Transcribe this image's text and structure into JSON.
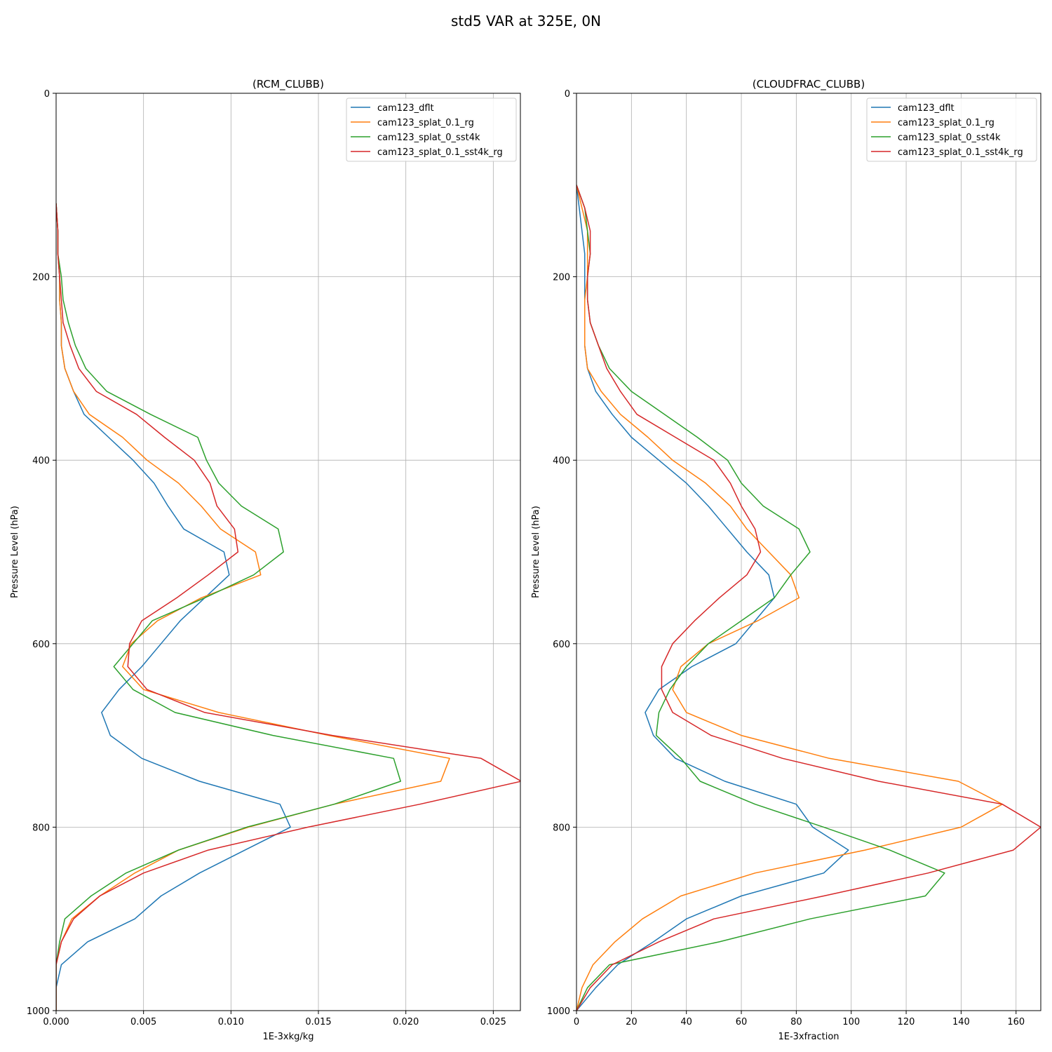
{
  "figure": {
    "title": "std5 VAR at 325E, 0N"
  },
  "colors": [
    "#1f77b4",
    "#ff7f0e",
    "#2ca02c",
    "#d62728"
  ],
  "chart_data": [
    {
      "type": "line",
      "title": "(RCM_CLUBB)",
      "xlabel": "1E-3xkg/kg",
      "ylabel": "Pressure Level (hPa)",
      "xlim": [
        0,
        0.02655
      ],
      "ylim": [
        1000,
        0
      ],
      "y_inverted": true,
      "grid": true,
      "legend": "top-right",
      "xticks": [
        0,
        0.005,
        0.01,
        0.015,
        0.02,
        0.025
      ],
      "xtick_labels": [
        "0.000",
        "0.005",
        "0.010",
        "0.015",
        "0.020",
        "0.025"
      ],
      "yticks": [
        0,
        200,
        400,
        600,
        800,
        1000
      ],
      "ytick_labels": [
        "0",
        "200",
        "400",
        "600",
        "800",
        "1000"
      ],
      "y": [
        120,
        150,
        175,
        200,
        225,
        250,
        275,
        300,
        325,
        350,
        375,
        400,
        425,
        450,
        475,
        500,
        525,
        550,
        575,
        600,
        625,
        650,
        675,
        700,
        725,
        750,
        775,
        800,
        825,
        850,
        875,
        900,
        925,
        950,
        975,
        1000
      ],
      "series": [
        {
          "name": "cam123_dflt",
          "values": [
            0,
            0.0001,
            0.0001,
            0.0002,
            0.0002,
            0.0003,
            0.0003,
            0.0005,
            0.001,
            0.0016,
            0.003,
            0.0044,
            0.0056,
            0.0064,
            0.0073,
            0.0096,
            0.0099,
            0.0085,
            0.0071,
            0.006,
            0.0049,
            0.0036,
            0.0026,
            0.0031,
            0.0049,
            0.0082,
            0.0128,
            0.0134,
            0.0108,
            0.0082,
            0.006,
            0.0045,
            0.0018,
            0.0003,
            0,
            0
          ]
        },
        {
          "name": "cam123_splat_0.1_rg",
          "values": [
            0,
            0.0001,
            0.0001,
            0.0002,
            0.0002,
            0.0003,
            0.0003,
            0.0005,
            0.001,
            0.0019,
            0.0038,
            0.0052,
            0.007,
            0.0083,
            0.0094,
            0.0114,
            0.0117,
            0.0083,
            0.0058,
            0.0043,
            0.0038,
            0.005,
            0.0093,
            0.0156,
            0.0225,
            0.022,
            0.0159,
            0.011,
            0.007,
            0.0045,
            0.0025,
            0.0009,
            0.0003,
            0,
            0,
            0
          ]
        },
        {
          "name": "cam123_splat_0_sst4k",
          "values": [
            0,
            0.0001,
            0.0001,
            0.0003,
            0.0004,
            0.0007,
            0.0011,
            0.0017,
            0.0029,
            0.0054,
            0.0081,
            0.0086,
            0.0093,
            0.0106,
            0.0127,
            0.013,
            0.0113,
            0.0085,
            0.0055,
            0.0044,
            0.0033,
            0.0044,
            0.0068,
            0.0124,
            0.0193,
            0.0197,
            0.0159,
            0.0109,
            0.007,
            0.004,
            0.002,
            0.0005,
            0.0002,
            0,
            0,
            0
          ]
        },
        {
          "name": "cam123_splat_0.1_sst4k_rg",
          "values": [
            0,
            0.0001,
            0.0001,
            0.0002,
            0.0003,
            0.0004,
            0.0008,
            0.0013,
            0.0023,
            0.0046,
            0.0062,
            0.0079,
            0.0088,
            0.0092,
            0.0102,
            0.0104,
            0.0087,
            0.0069,
            0.0049,
            0.0042,
            0.0041,
            0.0052,
            0.0085,
            0.0158,
            0.0243,
            0.0266,
            0.0208,
            0.0144,
            0.0087,
            0.005,
            0.0025,
            0.001,
            0.0003,
            0,
            0,
            0
          ]
        }
      ]
    },
    {
      "type": "line",
      "title": "(CLOUDFRAC_CLUBB)",
      "xlabel": "1E-3xfraction",
      "ylabel": "Pressure Level (hPa)",
      "xlim": [
        0,
        169
      ],
      "ylim": [
        1000,
        0
      ],
      "y_inverted": true,
      "grid": true,
      "legend": "top-right",
      "xticks": [
        0,
        20,
        40,
        60,
        80,
        100,
        120,
        140,
        160
      ],
      "xtick_labels": [
        "0",
        "20",
        "40",
        "60",
        "80",
        "100",
        "120",
        "140",
        "160"
      ],
      "yticks": [
        0,
        200,
        400,
        600,
        800,
        1000
      ],
      "ytick_labels": [
        "0",
        "200",
        "400",
        "600",
        "800",
        "1000"
      ],
      "y": [
        100,
        125,
        150,
        175,
        200,
        225,
        250,
        275,
        300,
        325,
        350,
        375,
        400,
        425,
        450,
        475,
        500,
        525,
        550,
        575,
        600,
        625,
        650,
        675,
        700,
        725,
        750,
        775,
        800,
        825,
        850,
        875,
        900,
        925,
        950,
        975,
        1000
      ],
      "series": [
        {
          "name": "cam123_dflt",
          "values": [
            0,
            1,
            2,
            3,
            3,
            3,
            3,
            3,
            4,
            7,
            13,
            20,
            30,
            40,
            48,
            55,
            62,
            70,
            72,
            65,
            58,
            42,
            30,
            25,
            28,
            36,
            54,
            80,
            86,
            99,
            90,
            60,
            40,
            28,
            15,
            7,
            0
          ]
        },
        {
          "name": "cam123_splat_0.1_rg",
          "values": [
            0,
            2,
            4,
            4,
            4,
            3,
            3,
            3,
            4,
            9,
            16,
            26,
            35,
            47,
            56,
            62,
            70,
            78,
            81,
            66,
            48,
            38,
            35,
            40,
            60,
            92,
            139,
            155,
            140,
            105,
            65,
            38,
            24,
            14,
            6,
            2,
            0
          ]
        },
        {
          "name": "cam123_splat_0_sst4k",
          "values": [
            0,
            3,
            4,
            5,
            4,
            4,
            5,
            8,
            12,
            20,
            32,
            44,
            55,
            60,
            68,
            81,
            85,
            78,
            72,
            60,
            48,
            40,
            34,
            30,
            29,
            38,
            45,
            65,
            90,
            114,
            134,
            127,
            85,
            52,
            12,
            4,
            0
          ]
        },
        {
          "name": "cam123_splat_0.1_sst4k_rg",
          "values": [
            0,
            3,
            5,
            5,
            4,
            4,
            5,
            8,
            11,
            16,
            22,
            36,
            50,
            56,
            60,
            65,
            67,
            62,
            52,
            43,
            35,
            31,
            31,
            35,
            49,
            75,
            110,
            155,
            169,
            159,
            128,
            90,
            50,
            30,
            13,
            5,
            0
          ]
        }
      ]
    }
  ]
}
